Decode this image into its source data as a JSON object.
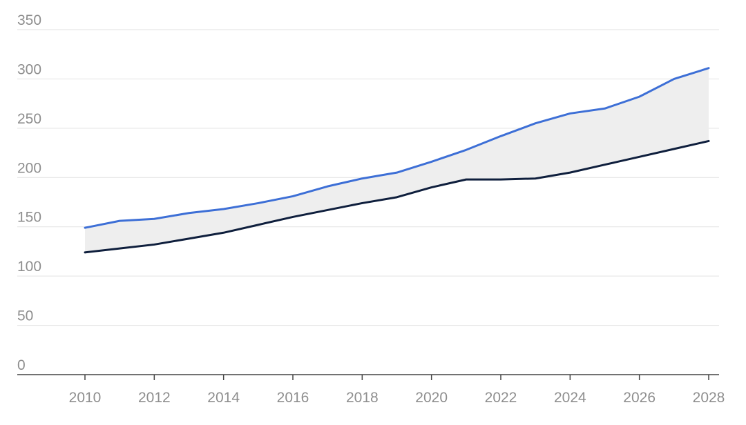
{
  "chart_data": {
    "type": "area",
    "x": [
      2010,
      2011,
      2012,
      2013,
      2014,
      2015,
      2016,
      2017,
      2018,
      2019,
      2020,
      2021,
      2022,
      2023,
      2024,
      2025,
      2026,
      2027,
      2028
    ],
    "x_ticks": [
      "2010",
      "2012",
      "2014",
      "2016",
      "2018",
      "2020",
      "2022",
      "2024",
      "2026",
      "2028"
    ],
    "y_ticks": [
      "0",
      "50",
      "100",
      "150",
      "200",
      "250",
      "300",
      "350"
    ],
    "xlim": [
      2010,
      2028
    ],
    "ylim": [
      0,
      350
    ],
    "grid": "horizontal",
    "legend": "none",
    "title": "",
    "xlabel": "",
    "ylabel": "",
    "series": [
      {
        "color": "#3d6fd6",
        "values": [
          149,
          156,
          158,
          164,
          168,
          174,
          181,
          191,
          199,
          205,
          216,
          228,
          242,
          255,
          265,
          270,
          282,
          300,
          311
        ]
      },
      {
        "color": "#0f1f3d",
        "values": [
          124,
          128,
          132,
          138,
          144,
          152,
          160,
          167,
          174,
          180,
          190,
          198,
          198,
          199,
          205,
          213,
          221,
          229,
          237
        ]
      }
    ],
    "band_fill": "#eeeeee",
    "gridline_color": "#e2e2e2",
    "axis_line_color": "#444444"
  }
}
